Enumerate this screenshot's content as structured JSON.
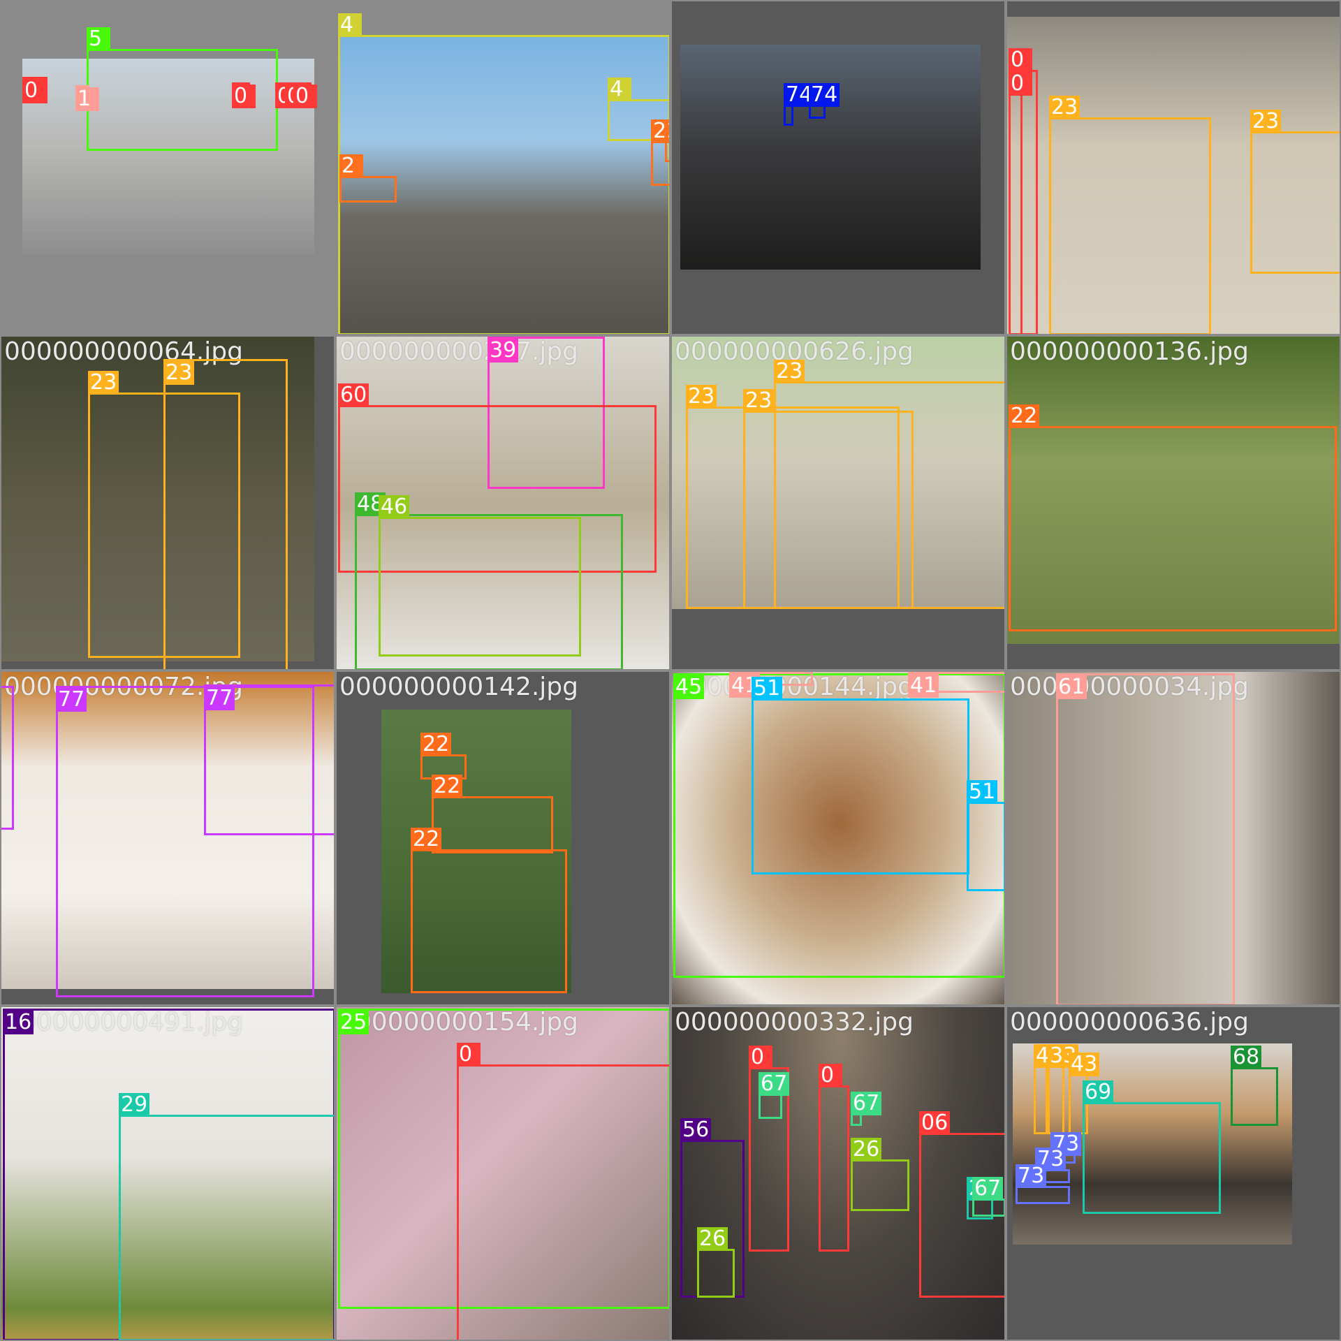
{
  "mosaic": {
    "tiles": [
      {
        "filename": "",
        "class_labels": [
          "5",
          "0",
          "1",
          "0",
          "0",
          "0",
          "0"
        ]
      },
      {
        "filename": "",
        "class_labels": [
          "4",
          "4",
          "2",
          "2",
          "2"
        ]
      },
      {
        "filename": "",
        "class_labels": [
          "74",
          "74"
        ]
      },
      {
        "filename": "",
        "class_labels": [
          "0",
          "0",
          "23",
          "23"
        ]
      },
      {
        "filename": "000000000064.jpg",
        "class_labels": [
          "23",
          "23"
        ]
      },
      {
        "filename": "000000000247.jpg",
        "class_labels": [
          "39",
          "60",
          "48",
          "46"
        ]
      },
      {
        "filename": "000000000626.jpg",
        "class_labels": [
          "23",
          "23",
          "23"
        ]
      },
      {
        "filename": "000000000136.jpg",
        "class_labels": [
          "22"
        ]
      },
      {
        "filename": "000000000072.jpg",
        "class_labels": [
          "77",
          "77",
          "77"
        ]
      },
      {
        "filename": "000000000142.jpg",
        "class_labels": [
          "22",
          "22",
          "22"
        ]
      },
      {
        "filename": "000000000144.jpg",
        "class_labels": [
          "45",
          "41",
          "41",
          "51",
          "51"
        ]
      },
      {
        "filename": "000000000034.jpg",
        "class_labels": [
          "61"
        ]
      },
      {
        "filename": "000000000491.jpg",
        "class_labels": [
          "16",
          "29"
        ]
      },
      {
        "filename": "000000000154.jpg",
        "class_labels": [
          "25",
          "0"
        ]
      },
      {
        "filename": "000000000332.jpg",
        "class_labels": [
          "0",
          "67",
          "0",
          "67",
          "56",
          "26",
          "06",
          "26",
          "29",
          "67"
        ]
      },
      {
        "filename": "000000000636.jpg",
        "class_labels": [
          "43",
          "33",
          "43",
          "68",
          "69",
          "73",
          "73",
          "73"
        ]
      }
    ]
  },
  "colors": {
    "background": "#8a8a8a",
    "class_0": "#ff3838",
    "class_1": "#ff9d97",
    "class_2": "#ff701f",
    "class_4": "#cfd231",
    "class_5": "#48f90a",
    "class_16": "#520085",
    "class_22": "#ff6b1a",
    "class_23": "#ffb21d",
    "class_25": "#48f90a",
    "class_26": "#92cc17",
    "class_29": "#1ac9a8",
    "class_39": "#ff37c7",
    "class_41": "#ff9d97",
    "class_45": "#48f90a",
    "class_46": "#92cc17",
    "class_48": "#3db82f",
    "class_51": "#00c2ff",
    "class_56": "#520085",
    "class_60": "#ff3838",
    "class_61": "#ff9d97",
    "class_67": "#3ddb86",
    "class_68": "#1a9334",
    "class_69": "#1ac9a8",
    "class_73": "#6473ff",
    "class_74": "#0018ec",
    "class_77": "#cb38ff"
  }
}
